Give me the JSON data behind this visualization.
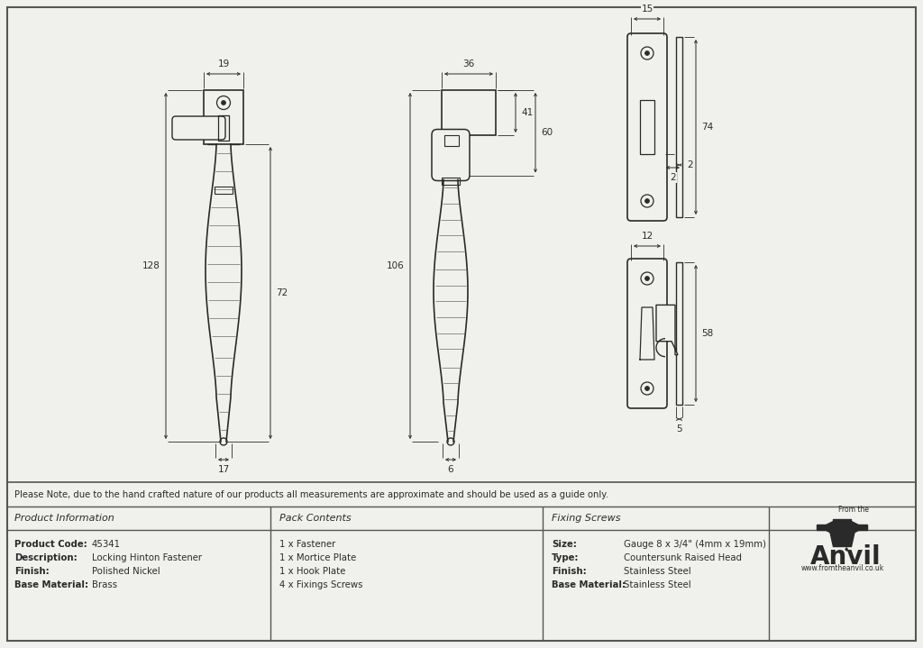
{
  "bg": "#f0f0ec",
  "lc": "#2a2a2a",
  "dc": "#2a2a2a",
  "note": "Please Note, due to the hand crafted nature of our products all measurements are approximate and should be used as a guide only.",
  "prod_code": "45341",
  "description": "Locking Hinton Fastener",
  "finish": "Polished Nickel",
  "base_mat": "Brass",
  "pack": [
    "1 x Fastener",
    "1 x Mortice Plate",
    "1 x Hook Plate",
    "4 x Fixings Screws"
  ],
  "sc_size": "Gauge 8 x 3/4\" (4mm x 19mm)",
  "sc_type": "Countersunk Raised Head",
  "sc_fin": "Stainless Steel",
  "sc_base": "Stainless Steel",
  "website": "www.fromtheanvil.co.uk"
}
